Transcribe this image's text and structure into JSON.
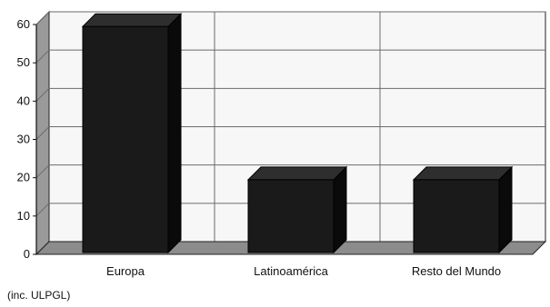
{
  "chart_data": {
    "type": "bar",
    "categories": [
      "Europa",
      "Latinoamérica",
      "Resto del Mundo"
    ],
    "values": [
      59,
      19,
      19
    ],
    "ylim": [
      0,
      60
    ],
    "yticks": [
      0,
      10,
      20,
      30,
      40,
      50,
      60
    ],
    "grid": true,
    "style": "3d",
    "colors": {
      "bar": "#1a1a1a",
      "bar_top": "#2e2e2e",
      "bar_side": "#0a0a0a",
      "wall": "#f7f7f7",
      "floor": "#8c8c8c",
      "grid": "#6b6b6b"
    }
  },
  "note": "(inc. ULPGL)"
}
